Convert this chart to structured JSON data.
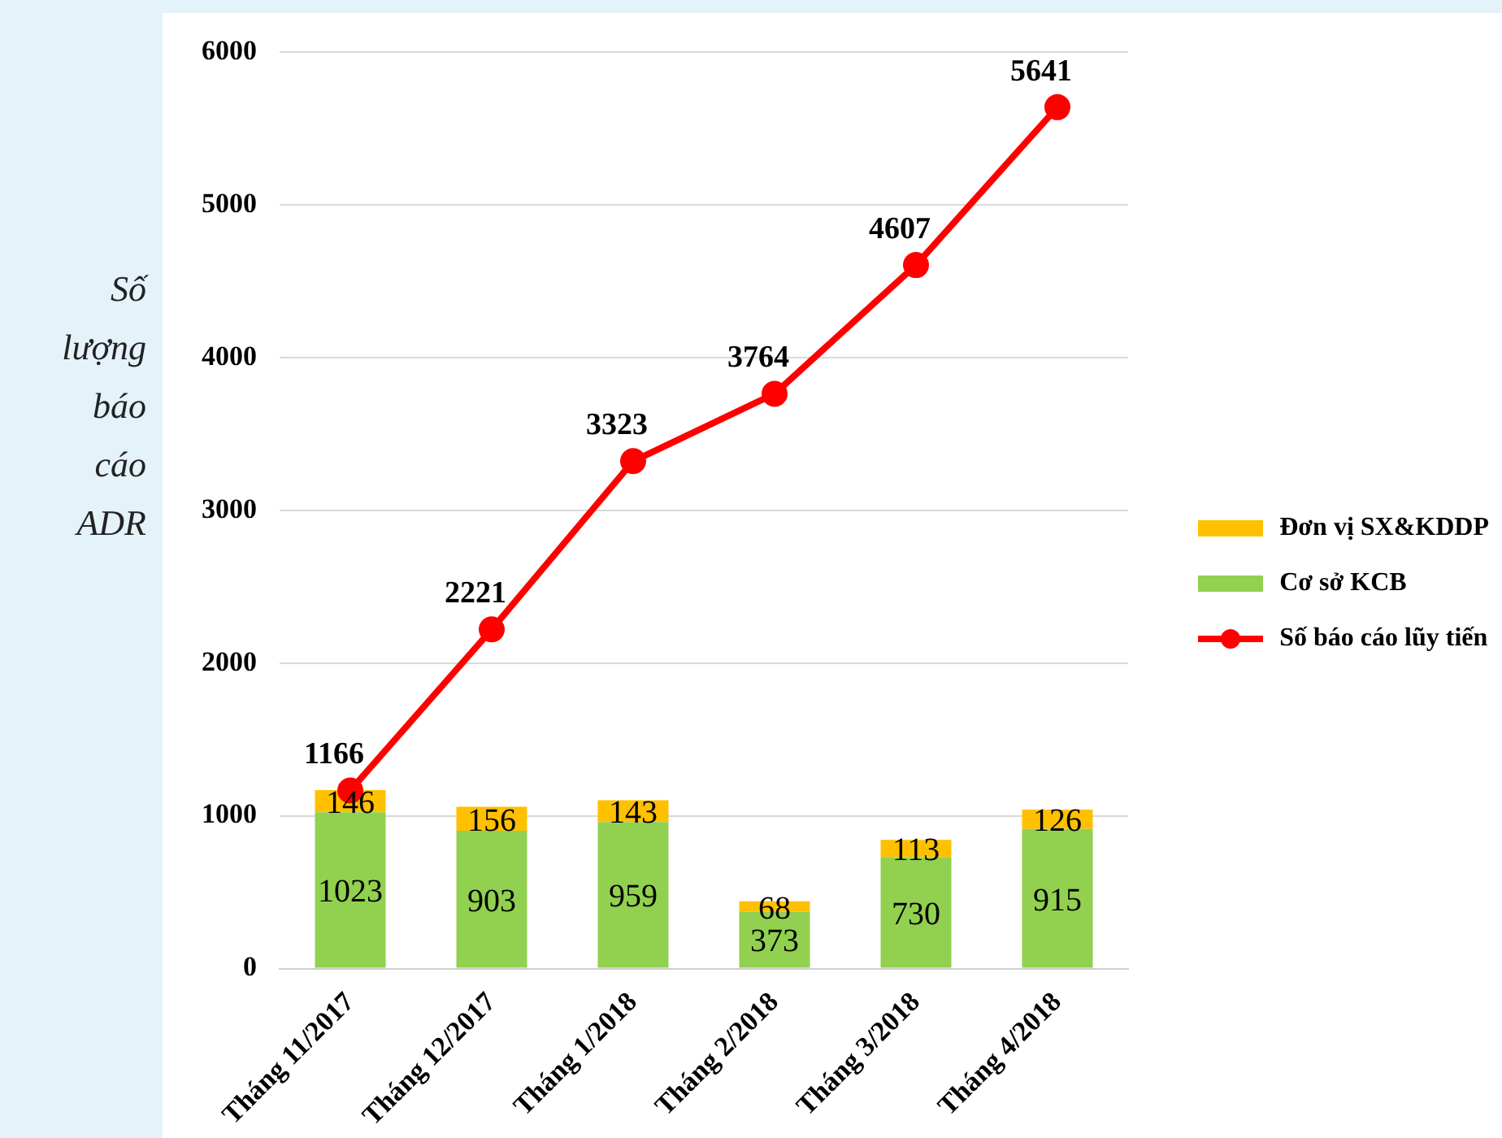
{
  "chart_data": {
    "type": "bar",
    "stacked": true,
    "ylabel": "Số lượng báo cáo ADR",
    "categories": [
      "Tháng 11/2017",
      "Tháng 12/2017",
      "Tháng 1/2018",
      "Tháng 2/2018",
      "Tháng 3/2018",
      "Tháng 4/2018"
    ],
    "series": [
      {
        "name": "Cơ sở KCB",
        "color": "#92d050",
        "values": [
          1023,
          903,
          959,
          373,
          730,
          915
        ]
      },
      {
        "name": "Đơn vị SX&KDDP",
        "color": "#ffc000",
        "values": [
          146,
          156,
          143,
          68,
          113,
          126
        ]
      },
      {
        "name": "Số báo cáo lũy tiến",
        "type": "line",
        "color": "#ff0000",
        "marker": "circle",
        "values": [
          1166,
          2221,
          3323,
          3764,
          4607,
          5641
        ]
      }
    ],
    "ylim": [
      0,
      6000
    ],
    "yticks": [
      0,
      1000,
      2000,
      3000,
      4000,
      5000,
      6000
    ],
    "grid": "y",
    "legend": "right",
    "data_labels": true
  }
}
